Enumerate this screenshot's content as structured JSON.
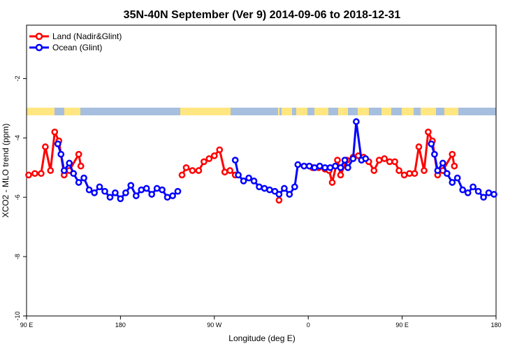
{
  "chart_data": {
    "type": "line",
    "title": "35N-40N September (Ver 9)   2014-09-06 to 2018-12-31",
    "xlabel": "Longitude (deg E)",
    "ylabel": "XCO2 - MLO trend (ppm)",
    "xlim": [
      90,
      540
    ],
    "ylim": [
      -10,
      -0.2
    ],
    "x_ticks": [
      {
        "value": 90,
        "label": "90 E"
      },
      {
        "value": 180,
        "label": "180"
      },
      {
        "value": 270,
        "label": "90 W"
      },
      {
        "value": 360,
        "label": "0"
      },
      {
        "value": 450,
        "label": "90 E"
      },
      {
        "value": 540,
        "label": "180"
      }
    ],
    "y_ticks": [
      {
        "value": -10,
        "label": "-10"
      },
      {
        "value": -8,
        "label": "-8"
      },
      {
        "value": -6,
        "label": "-6"
      },
      {
        "value": -4,
        "label": "-4"
      },
      {
        "value": -2,
        "label": "-2"
      }
    ],
    "legend_position": "top-left",
    "colors": {
      "land": "#ff0000",
      "ocean": "#0000ff",
      "map_ocean": "#a7bfdf",
      "map_land": "#ffe680"
    },
    "series": [
      {
        "name": "Land (Nadir&Glint)",
        "color": "#ff0000",
        "segments": [
          [
            [
              92,
              -5.25
            ],
            [
              98,
              -5.2
            ],
            [
              104,
              -5.2
            ],
            [
              108,
              -4.3
            ],
            [
              113,
              -5.1
            ],
            [
              117,
              -3.8
            ],
            [
              121,
              -4.1
            ],
            [
              126,
              -5.25
            ],
            [
              131,
              -5.1
            ],
            [
              140,
              -4.55
            ],
            [
              142,
              -4.95
            ]
          ],
          [
            [
              239,
              -5.25
            ],
            [
              243,
              -5.0
            ],
            [
              249,
              -5.1
            ],
            [
              255,
              -5.1
            ],
            [
              260,
              -4.8
            ],
            [
              265,
              -4.7
            ],
            [
              270,
              -4.6
            ],
            [
              275,
              -4.4
            ],
            [
              280,
              -5.15
            ],
            [
              285,
              -5.1
            ],
            [
              290,
              -5.25
            ]
          ],
          [
            [
              364,
              -5.0
            ],
            [
              370,
              -5.0
            ],
            [
              376,
              -5.05
            ],
            [
              380,
              -5.1
            ],
            [
              383,
              -5.5
            ],
            [
              388,
              -4.75
            ],
            [
              391,
              -5.25
            ],
            [
              397,
              -4.75
            ],
            [
              403,
              -4.65
            ],
            [
              408,
              -4.6
            ],
            [
              413,
              -4.65
            ],
            [
              418,
              -4.8
            ],
            [
              423,
              -5.1
            ],
            [
              428,
              -4.75
            ],
            [
              433,
              -4.7
            ],
            [
              438,
              -4.8
            ],
            [
              443,
              -4.8
            ],
            [
              447,
              -5.1
            ],
            [
              452,
              -5.25
            ],
            [
              457,
              -5.2
            ],
            [
              462,
              -5.2
            ],
            [
              466,
              -4.3
            ],
            [
              471,
              -5.1
            ],
            [
              475,
              -3.8
            ],
            [
              479,
              -4.1
            ],
            [
              484,
              -5.25
            ],
            [
              489,
              -5.1
            ],
            [
              498,
              -4.55
            ],
            [
              500,
              -4.95
            ]
          ],
          [
            [
              332,
              -6.1
            ]
          ]
        ]
      },
      {
        "name": "Ocean (Glint)",
        "color": "#0000ff",
        "segments": [
          [
            [
              120,
              -4.2
            ],
            [
              123,
              -4.55
            ],
            [
              126,
              -5.1
            ],
            [
              131,
              -4.85
            ],
            [
              135,
              -5.2
            ],
            [
              140,
              -5.5
            ],
            [
              145,
              -5.35
            ],
            [
              150,
              -5.75
            ],
            [
              155,
              -5.85
            ],
            [
              160,
              -5.65
            ],
            [
              165,
              -5.8
            ],
            [
              170,
              -6.0
            ],
            [
              175,
              -5.85
            ],
            [
              180,
              -6.05
            ],
            [
              185,
              -5.85
            ],
            [
              190,
              -5.6
            ],
            [
              195,
              -5.95
            ],
            [
              200,
              -5.75
            ],
            [
              205,
              -5.7
            ],
            [
              210,
              -5.9
            ],
            [
              215,
              -5.7
            ],
            [
              220,
              -5.75
            ],
            [
              225,
              -6.0
            ],
            [
              230,
              -5.95
            ],
            [
              235,
              -5.8
            ]
          ],
          [
            [
              290,
              -4.75
            ],
            [
              293,
              -5.25
            ],
            [
              298,
              -5.45
            ],
            [
              303,
              -5.35
            ],
            [
              308,
              -5.45
            ],
            [
              313,
              -5.65
            ],
            [
              318,
              -5.7
            ],
            [
              323,
              -5.75
            ],
            [
              328,
              -5.8
            ],
            [
              332,
              -5.9
            ],
            [
              337,
              -5.7
            ],
            [
              342,
              -5.9
            ],
            [
              347,
              -5.65
            ],
            [
              350,
              -4.9
            ],
            [
              356,
              -4.95
            ],
            [
              361,
              -4.95
            ],
            [
              366,
              -5.0
            ],
            [
              371,
              -4.95
            ],
            [
              376,
              -5.0
            ],
            [
              381,
              -5.0
            ],
            [
              386,
              -4.95
            ],
            [
              391,
              -5.0
            ],
            [
              395,
              -4.75
            ],
            [
              398,
              -5.0
            ],
            [
              403,
              -4.7
            ],
            [
              406,
              -3.45
            ],
            [
              411,
              -4.75
            ],
            [
              415,
              -4.7
            ]
          ],
          [
            [
              478,
              -4.2
            ],
            [
              481,
              -4.55
            ],
            [
              484,
              -5.1
            ],
            [
              489,
              -4.85
            ],
            [
              493,
              -5.2
            ],
            [
              498,
              -5.5
            ],
            [
              503,
              -5.35
            ],
            [
              508,
              -5.75
            ],
            [
              513,
              -5.85
            ],
            [
              518,
              -5.65
            ],
            [
              523,
              -5.8
            ],
            [
              528,
              -6.0
            ],
            [
              533,
              -5.85
            ],
            [
              538,
              -5.9
            ]
          ]
        ]
      }
    ]
  }
}
